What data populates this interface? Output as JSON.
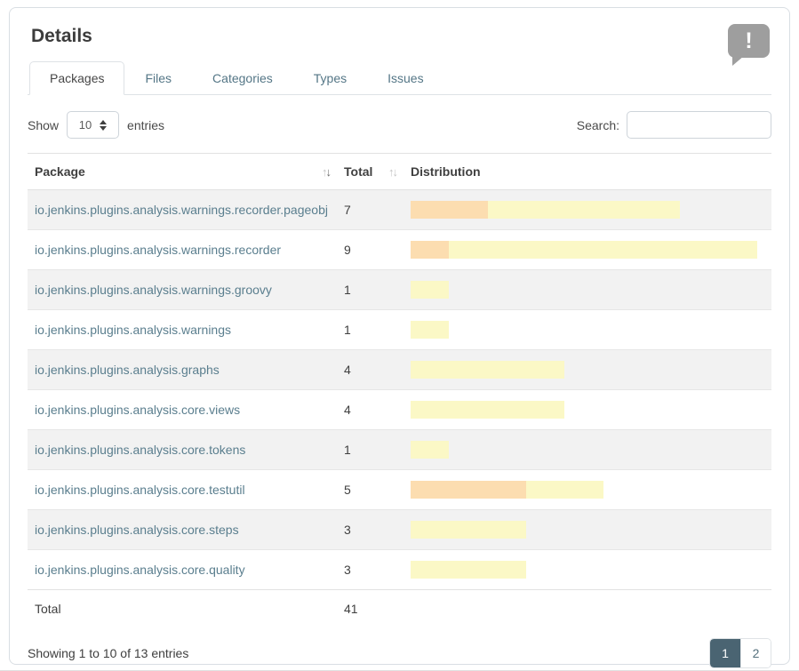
{
  "card": {
    "title": "Details",
    "info_icon_glyph": "!"
  },
  "tabs": [
    {
      "label": "Packages",
      "active": true
    },
    {
      "label": "Files",
      "active": false
    },
    {
      "label": "Categories",
      "active": false
    },
    {
      "label": "Types",
      "active": false
    },
    {
      "label": "Issues",
      "active": false
    }
  ],
  "controls": {
    "show_label": "Show",
    "page_size": "10",
    "entries_label": "entries",
    "search_label": "Search:",
    "search_value": ""
  },
  "sort_icons": {
    "up": "↑",
    "down": "↓"
  },
  "table": {
    "columns": [
      {
        "label": "Package",
        "sortable": true
      },
      {
        "label": "Total",
        "sortable": true
      },
      {
        "label": "Distribution",
        "sortable": false
      }
    ],
    "max_total": 9,
    "rows": [
      {
        "package": "io.jenkins.plugins.analysis.warnings.recorder.pageobj",
        "total": 7,
        "high": 2,
        "normal": 5
      },
      {
        "package": "io.jenkins.plugins.analysis.warnings.recorder",
        "total": 9,
        "high": 1,
        "normal": 8
      },
      {
        "package": "io.jenkins.plugins.analysis.warnings.groovy",
        "total": 1,
        "high": 0,
        "normal": 1
      },
      {
        "package": "io.jenkins.plugins.analysis.warnings",
        "total": 1,
        "high": 0,
        "normal": 1
      },
      {
        "package": "io.jenkins.plugins.analysis.graphs",
        "total": 4,
        "high": 0,
        "normal": 4
      },
      {
        "package": "io.jenkins.plugins.analysis.core.views",
        "total": 4,
        "high": 0,
        "normal": 4
      },
      {
        "package": "io.jenkins.plugins.analysis.core.tokens",
        "total": 1,
        "high": 0,
        "normal": 1
      },
      {
        "package": "io.jenkins.plugins.analysis.core.testutil",
        "total": 5,
        "high": 3,
        "normal": 2
      },
      {
        "package": "io.jenkins.plugins.analysis.core.steps",
        "total": 3,
        "high": 0,
        "normal": 3
      },
      {
        "package": "io.jenkins.plugins.analysis.core.quality",
        "total": 3,
        "high": 0,
        "normal": 3
      }
    ],
    "footer": {
      "label": "Total",
      "total": "41"
    }
  },
  "pagination": {
    "summary": "Showing 1 to 10 of 13 entries",
    "pages": [
      {
        "label": "1",
        "active": true
      },
      {
        "label": "2",
        "active": false
      }
    ]
  },
  "colors": {
    "severity_high": "#fcddb0",
    "severity_normal": "#fbf8c6",
    "accent": "#4a6472",
    "link": "#5a7e8e"
  }
}
